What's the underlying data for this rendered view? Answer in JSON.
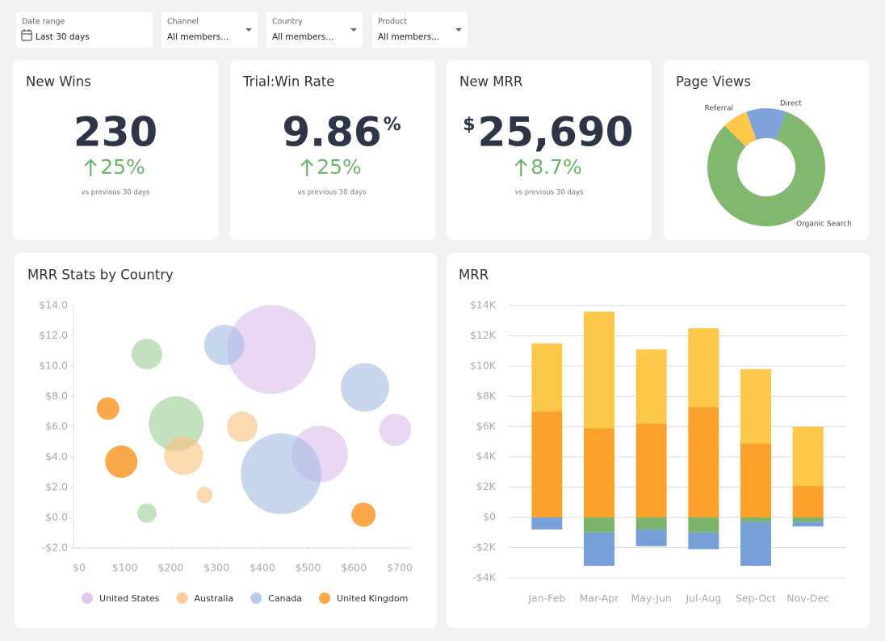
{
  "filters": [
    {
      "label": "Date range",
      "value": "Last 30 days"
    },
    {
      "label": "Channel",
      "value": "All members..."
    },
    {
      "label": "Country",
      "value": "All members..."
    },
    {
      "label": "Product",
      "value": "All members..."
    }
  ],
  "kpis": [
    {
      "title": "New Wins",
      "value": "230",
      "change": "25%",
      "note": "vs previous 30 days"
    },
    {
      "title": "Trial:Win Rate",
      "value": "9.86",
      "unit": "%",
      "change": "25%",
      "note": "vs previous 30 days"
    },
    {
      "title": "New MRR",
      "prefix": "$",
      "value": "25,690",
      "change": "8.7%",
      "note": "vs previous 30 days"
    }
  ],
  "chart_data": [
    {
      "type": "pie",
      "title": "Page Views",
      "categories": [
        "Referral",
        "Direct",
        "Organic Search"
      ],
      "values": [
        7,
        11,
        82
      ],
      "colors": [
        "#fec84a",
        "#7ea3d9",
        "#80b870"
      ]
    },
    {
      "type": "scatter",
      "title": "MRR Stats by Country",
      "xlim": [
        0,
        700
      ],
      "xticks": [
        {
          "value": 0,
          "label": "$0"
        },
        {
          "value": 100,
          "label": "$100"
        },
        {
          "value": 200,
          "label": "$200"
        },
        {
          "value": 300,
          "label": "$300"
        },
        {
          "value": 400,
          "label": "$400"
        },
        {
          "value": 500,
          "label": "$500"
        },
        {
          "value": 600,
          "label": "$600"
        },
        {
          "value": 700,
          "label": "$700"
        }
      ],
      "ylim": [
        -2,
        14
      ],
      "yticks": [
        {
          "value": -2,
          "label": "-$2.0"
        },
        {
          "value": 0,
          "label": "$0.0"
        },
        {
          "value": 2,
          "label": "$2.0"
        },
        {
          "value": 4,
          "label": "$4.0"
        },
        {
          "value": 6,
          "label": "$6.0"
        },
        {
          "value": 8,
          "label": "$8.0"
        },
        {
          "value": 10,
          "label": "$10.0"
        },
        {
          "value": 12,
          "label": "$12.0"
        },
        {
          "value": 14,
          "label": "$14.0"
        }
      ],
      "series": [
        {
          "color": "#9fcf96",
          "x": [
            148,
            212,
            148
          ],
          "values": [
            10.8,
            6.2,
            0.3
          ],
          "sizes": [
            19,
            34,
            12
          ]
        },
        {
          "name": "United States",
          "color": "#dcbcec",
          "x": [
            420,
            525,
            690
          ],
          "values": [
            11.1,
            4.2,
            5.8
          ],
          "sizes": [
            55,
            35,
            20
          ]
        },
        {
          "name": "Australia",
          "color": "#fcc07f",
          "x": [
            356,
            228,
            274
          ],
          "values": [
            6.0,
            4.1,
            1.5
          ],
          "sizes": [
            19,
            24,
            10
          ]
        },
        {
          "name": "Canada",
          "color": "#a4bde3",
          "x": [
            317,
            624,
            441
          ],
          "values": [
            11.4,
            8.6,
            2.9
          ],
          "sizes": [
            25,
            30,
            50
          ]
        },
        {
          "name": "United Kingdom",
          "color": "#f7941d",
          "x": [
            63,
            92,
            621
          ],
          "values": [
            7.2,
            3.7,
            0.2
          ],
          "sizes": [
            14,
            20,
            15
          ]
        }
      ]
    },
    {
      "type": "bar",
      "title": "MRR",
      "categories": [
        "Jan-Feb",
        "Mar-Apr",
        "May-Jun",
        "Jul-Aug",
        "Sep-Oct",
        "Nov-Dec"
      ],
      "ylim": [
        -4000,
        14000
      ],
      "yticks": [
        {
          "value": -4000,
          "label": "-$4K"
        },
        {
          "value": -2000,
          "label": "-$2K"
        },
        {
          "value": 0,
          "label": "$0"
        },
        {
          "value": 2000,
          "label": "$2K"
        },
        {
          "value": 4000,
          "label": "$4K"
        },
        {
          "value": 6000,
          "label": "$6K"
        },
        {
          "value": 8000,
          "label": "$8K"
        },
        {
          "value": 10000,
          "label": "$10K"
        },
        {
          "value": 12000,
          "label": "$12K"
        },
        {
          "value": 14000,
          "label": "$14K"
        }
      ],
      "grid": true,
      "series": [
        {
          "color": "#fba22c",
          "values": [
            7000,
            5900,
            6200,
            7300,
            4900,
            2100
          ]
        },
        {
          "color": "#fec84a",
          "values": [
            4500,
            7700,
            4900,
            5200,
            4900,
            3900
          ]
        },
        {
          "color": "#7cb36b",
          "values": [
            0,
            -1000,
            -800,
            -1000,
            -300,
            -300
          ]
        },
        {
          "color": "#779fd8",
          "values": [
            -800,
            -2200,
            -1100,
            -1100,
            -2900,
            -300
          ]
        }
      ]
    }
  ]
}
